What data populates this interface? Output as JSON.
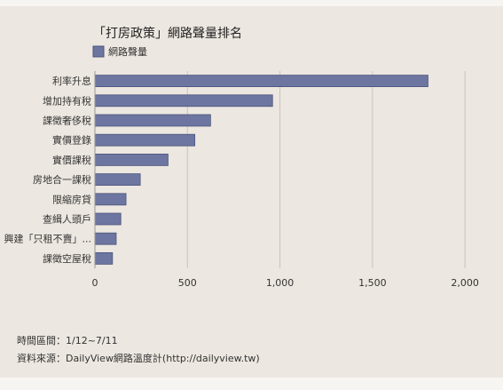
{
  "chart_data": {
    "type": "bar",
    "orientation": "horizontal",
    "title": "「打房政策」網路聲量排名",
    "legend": {
      "entries": [
        "網路聲量"
      ],
      "placement": "top-left"
    },
    "series": [
      {
        "name": "網路聲量",
        "color": "#6d76a0",
        "values": [
          1800,
          960,
          625,
          540,
          395,
          245,
          168,
          140,
          115,
          95
        ]
      }
    ],
    "categories": [
      "利率升息",
      "增加持有稅",
      "課徵奢侈稅",
      "實價登錄",
      "實價課稅",
      "房地合一課稅",
      "限縮房貸",
      "查緝人頭戶",
      "興建「只租不賣」...",
      "課徵空屋稅"
    ],
    "xlim": [
      0,
      2100
    ],
    "x_ticks": [
      0,
      500,
      1000,
      1500,
      2000
    ],
    "x_tick_labels": [
      "0",
      "500",
      "1,000",
      "1,500",
      "2,000"
    ],
    "grid": "vertical",
    "xlabel": "",
    "ylabel": ""
  },
  "footer": {
    "period": "時間區間：1/12~7/11",
    "source": "資料來源：DailyView網路溫度計(http://dailyview.tw)"
  }
}
